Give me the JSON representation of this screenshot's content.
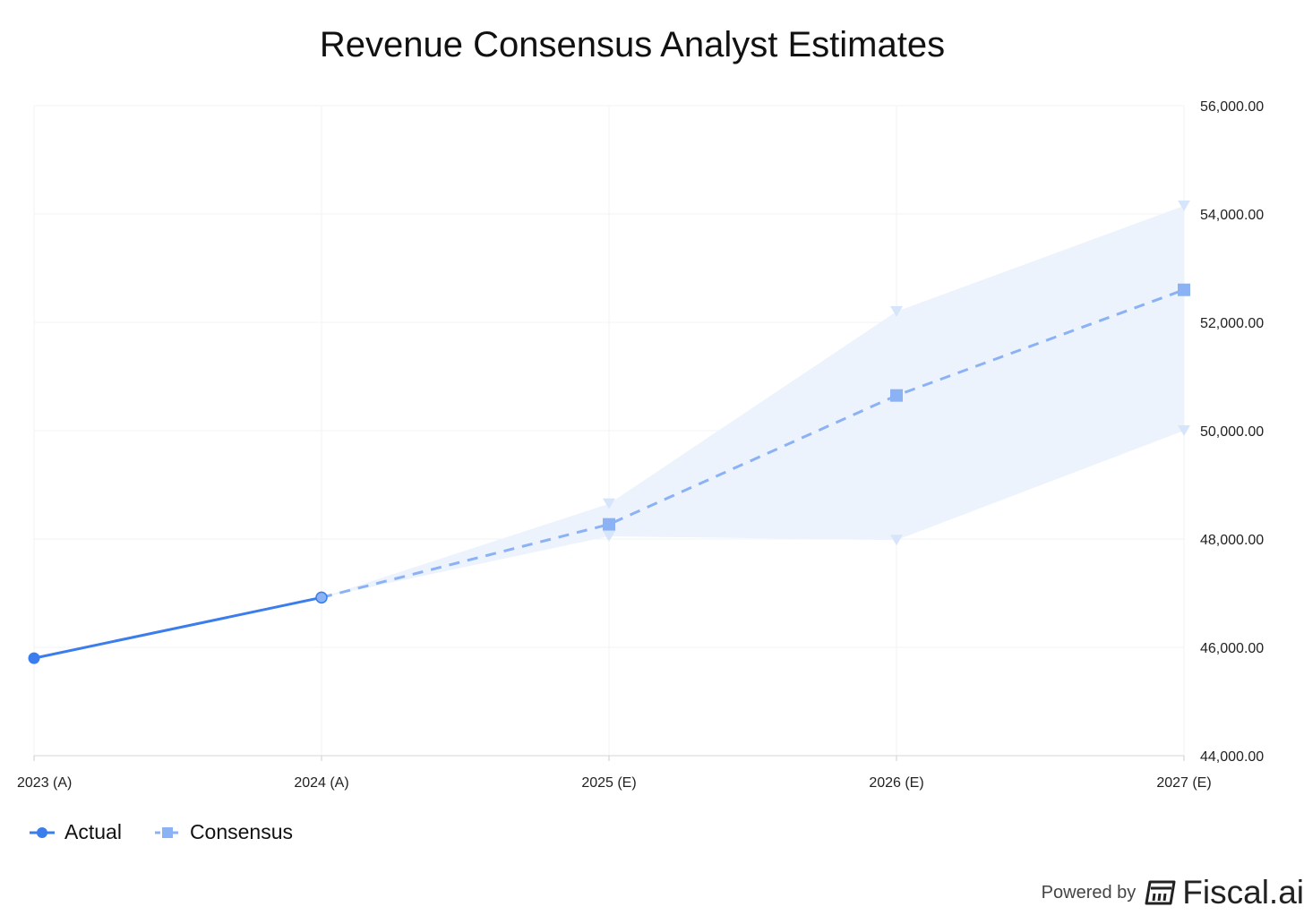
{
  "chart_data": {
    "type": "line",
    "title": "Revenue Consensus Analyst Estimates",
    "categories": [
      "2023 (A)",
      "2024 (A)",
      "2025 (E)",
      "2026 (E)",
      "2027 (E)"
    ],
    "y_ticks": [
      "44,000.00",
      "46,000.00",
      "48,000.00",
      "50,000.00",
      "52,000.00",
      "54,000.00",
      "56,000.00"
    ],
    "ylim": [
      44000,
      56000
    ],
    "y_axis_position": "right",
    "grid": true,
    "legend_position": "bottom-left",
    "series": [
      {
        "name": "Actual",
        "color": "#3b7ded",
        "style": "solid",
        "marker": "circle",
        "values": [
          45800,
          46920,
          null,
          null,
          null
        ]
      },
      {
        "name": "Consensus",
        "color": "#8bb2f4",
        "style": "dashed",
        "marker": "square",
        "values": [
          null,
          46920,
          48270,
          50650,
          52600
        ]
      }
    ],
    "range_band": {
      "color": "#edf3fd",
      "marker_color": "#d7e5fb",
      "high": [
        null,
        46920,
        48650,
        52200,
        54150
      ],
      "low": [
        null,
        46920,
        48050,
        47980,
        50000
      ]
    }
  },
  "footer": {
    "powered_by": "Powered by",
    "brand": "Fiscal.ai",
    "logo_icon": "fiscal-logo-icon"
  }
}
